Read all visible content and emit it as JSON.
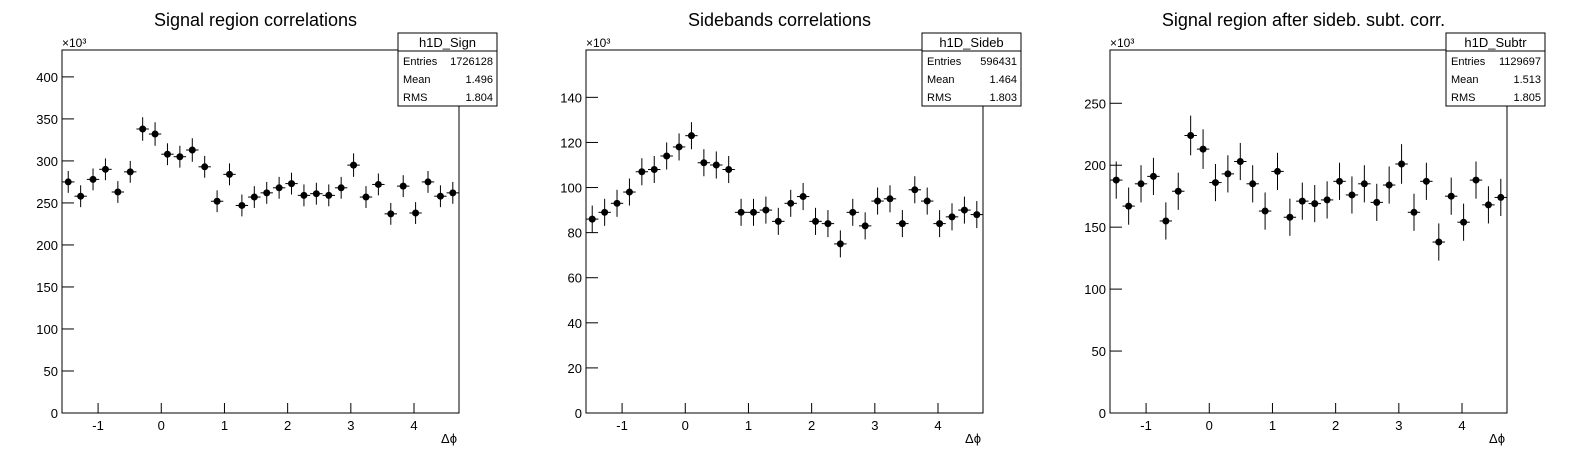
{
  "chart_data": [
    {
      "type": "histogram",
      "title": "Signal region correlations",
      "x_label": "Δϕ",
      "y_exponent": "×10³",
      "stats_name": "h1D_Sign",
      "stats": [
        {
          "label": "Entries",
          "value": 1726128
        },
        {
          "label": "Mean",
          "value": 1.496
        },
        {
          "label": "RMS",
          "value": 1.804
        }
      ],
      "bins": [
        -1.571,
        -1.374,
        -1.178,
        -0.982,
        -0.785,
        -0.589,
        -0.393,
        -0.196,
        0,
        0.196,
        0.393,
        0.589,
        0.785,
        0.982,
        1.178,
        1.374,
        1.571,
        1.767,
        1.963,
        2.16,
        2.356,
        2.553,
        2.749,
        2.945,
        3.142,
        3.338,
        3.534,
        3.731,
        3.927,
        4.123,
        4.32,
        4.516,
        4.712
      ],
      "values": [
        275,
        258,
        278,
        290,
        263,
        287,
        338,
        332,
        308,
        305,
        313,
        293,
        252,
        284,
        247,
        257,
        262,
        268,
        273,
        259,
        261,
        259,
        268,
        295,
        257,
        272,
        237,
        270,
        238,
        275,
        258,
        262
      ],
      "errors": [
        13,
        13,
        13,
        13,
        13,
        13,
        14,
        14,
        13,
        13,
        14,
        13,
        13,
        13,
        13,
        13,
        13,
        13,
        13,
        13,
        13,
        13,
        13,
        14,
        13,
        13,
        13,
        13,
        13,
        13,
        13,
        13
      ],
      "color": "#000000",
      "xlim": [
        -1.571,
        4.712
      ],
      "xticks": [
        -1,
        0,
        1,
        2,
        3,
        4
      ],
      "ylim": [
        0,
        432
      ],
      "yticks": [
        0,
        50,
        100,
        150,
        200,
        250,
        300,
        350,
        400
      ],
      "grid": false
    },
    {
      "type": "histogram",
      "title": "Sidebands correlations",
      "x_label": "Δϕ",
      "y_exponent": "×10³",
      "stats_name": "h1D_Sideb",
      "stats": [
        {
          "label": "Entries",
          "value": 596431
        },
        {
          "label": "Mean",
          "value": 1.464
        },
        {
          "label": "RMS",
          "value": 1.803
        }
      ],
      "bins": [
        -1.571,
        -1.374,
        -1.178,
        -0.982,
        -0.785,
        -0.589,
        -0.393,
        -0.196,
        0,
        0.196,
        0.393,
        0.589,
        0.785,
        0.982,
        1.178,
        1.374,
        1.571,
        1.767,
        1.963,
        2.16,
        2.356,
        2.553,
        2.749,
        2.945,
        3.142,
        3.338,
        3.534,
        3.731,
        3.927,
        4.123,
        4.32,
        4.516,
        4.712
      ],
      "values": [
        86,
        89,
        93,
        98,
        107,
        108,
        114,
        118,
        123,
        111,
        110,
        108,
        89,
        89,
        90,
        85,
        93,
        96,
        85,
        84,
        75,
        89,
        83,
        94,
        95,
        84,
        99,
        94,
        84,
        87,
        90,
        88
      ],
      "errors": [
        6,
        6,
        6,
        6,
        6,
        6,
        6,
        6,
        6,
        6,
        6,
        6,
        6,
        6,
        6,
        6,
        6,
        6,
        6,
        6,
        6,
        6,
        6,
        6,
        6,
        6,
        6,
        6,
        6,
        6,
        6,
        6
      ],
      "color": "#000000",
      "xlim": [
        -1.571,
        4.712
      ],
      "xticks": [
        -1,
        0,
        1,
        2,
        3,
        4
      ],
      "ylim": [
        0,
        161
      ],
      "yticks": [
        0,
        20,
        40,
        60,
        80,
        100,
        120,
        140
      ],
      "grid": false
    },
    {
      "type": "histogram",
      "title": "Signal region after sideb. subt. corr.",
      "x_label": "Δϕ",
      "y_exponent": "×10³",
      "stats_name": "h1D_Subtr",
      "stats": [
        {
          "label": "Entries",
          "value": 1129697
        },
        {
          "label": "Mean",
          "value": 1.513
        },
        {
          "label": "RMS",
          "value": 1.805
        }
      ],
      "bins": [
        -1.571,
        -1.374,
        -1.178,
        -0.982,
        -0.785,
        -0.589,
        -0.393,
        -0.196,
        0,
        0.196,
        0.393,
        0.589,
        0.785,
        0.982,
        1.178,
        1.374,
        1.571,
        1.767,
        1.963,
        2.16,
        2.356,
        2.553,
        2.749,
        2.945,
        3.142,
        3.338,
        3.534,
        3.731,
        3.927,
        4.123,
        4.32,
        4.516,
        4.712
      ],
      "values": [
        188,
        167,
        185,
        191,
        155,
        179,
        224,
        213,
        186,
        193,
        203,
        185,
        163,
        195,
        158,
        171,
        169,
        172,
        187,
        176,
        185,
        170,
        184,
        201,
        162,
        187,
        138,
        175,
        154,
        188,
        168,
        174
      ],
      "errors": [
        15,
        15,
        15,
        15,
        15,
        15,
        16,
        16,
        15,
        15,
        15,
        15,
        15,
        15,
        15,
        15,
        15,
        15,
        15,
        15,
        15,
        15,
        15,
        16,
        15,
        15,
        15,
        15,
        15,
        15,
        15,
        15
      ],
      "color": "#000000",
      "xlim": [
        -1.571,
        4.712
      ],
      "xticks": [
        -1,
        0,
        1,
        2,
        3,
        4
      ],
      "ylim": [
        0,
        293
      ],
      "yticks": [
        0,
        50,
        100,
        150,
        200,
        250
      ],
      "grid": false
    }
  ]
}
